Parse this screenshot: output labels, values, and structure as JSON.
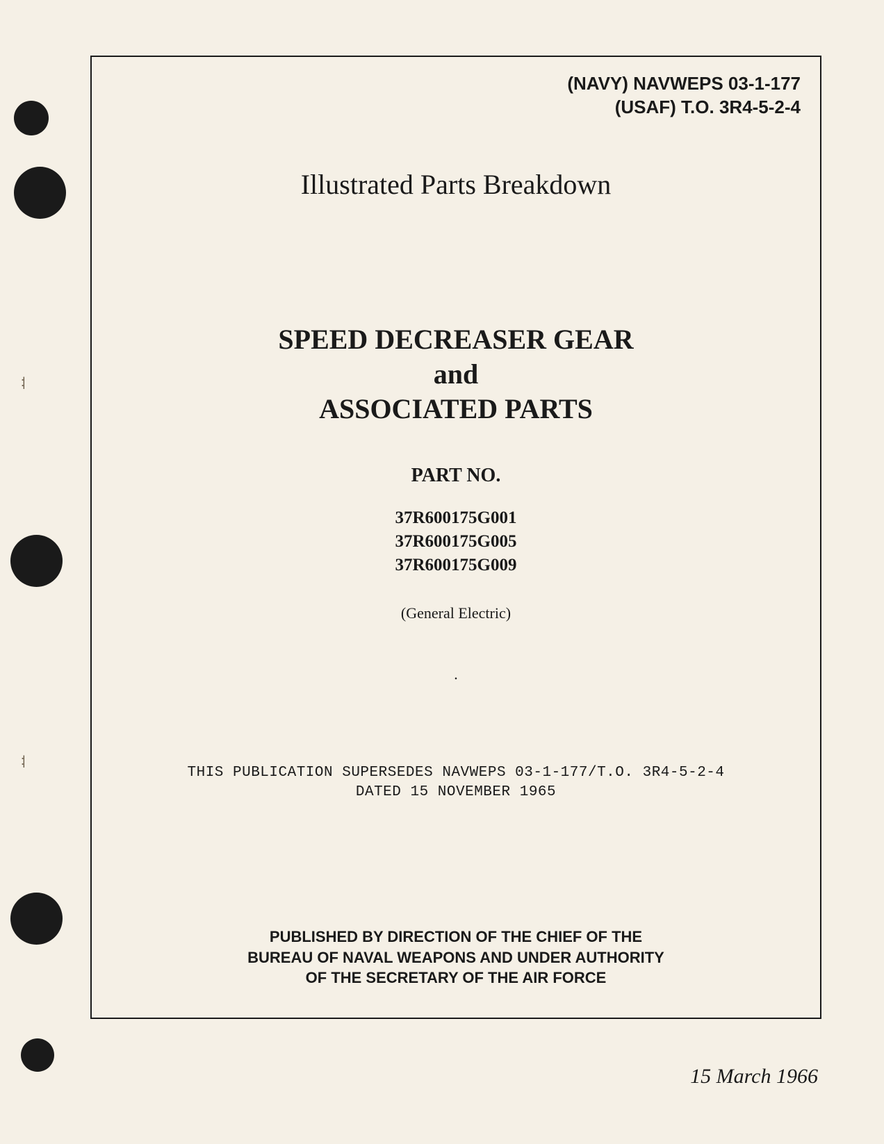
{
  "header": {
    "navy_code": "(NAVY) NAVWEPS 03-1-177",
    "usaf_code": "(USAF) T.O. 3R4-5-2-4"
  },
  "doc_type": "Illustrated Parts Breakdown",
  "title": {
    "line1": "SPEED DECREASER GEAR",
    "line2": "and",
    "line3": "ASSOCIATED PARTS"
  },
  "part_no_label": "PART NO.",
  "part_numbers": {
    "p1": "37R600175G001",
    "p2": "37R600175G005",
    "p3": "37R600175G009"
  },
  "manufacturer": "(General Electric)",
  "supersedes": {
    "line1": "THIS PUBLICATION SUPERSEDES NAVWEPS 03-1-177/T.O. 3R4-5-2-4",
    "line2": "DATED 15 NOVEMBER 1965"
  },
  "published_by": {
    "line1": "PUBLISHED BY DIRECTION OF THE CHIEF OF THE",
    "line2": "BUREAU OF NAVAL WEAPONS AND UNDER AUTHORITY",
    "line3": "OF THE SECRETARY OF THE AIR FORCE"
  },
  "date": "15 March 1966",
  "colors": {
    "background": "#f5f0e6",
    "text": "#1a1a1a",
    "border": "#1a1a1a",
    "punch": "#1a1a1a"
  }
}
